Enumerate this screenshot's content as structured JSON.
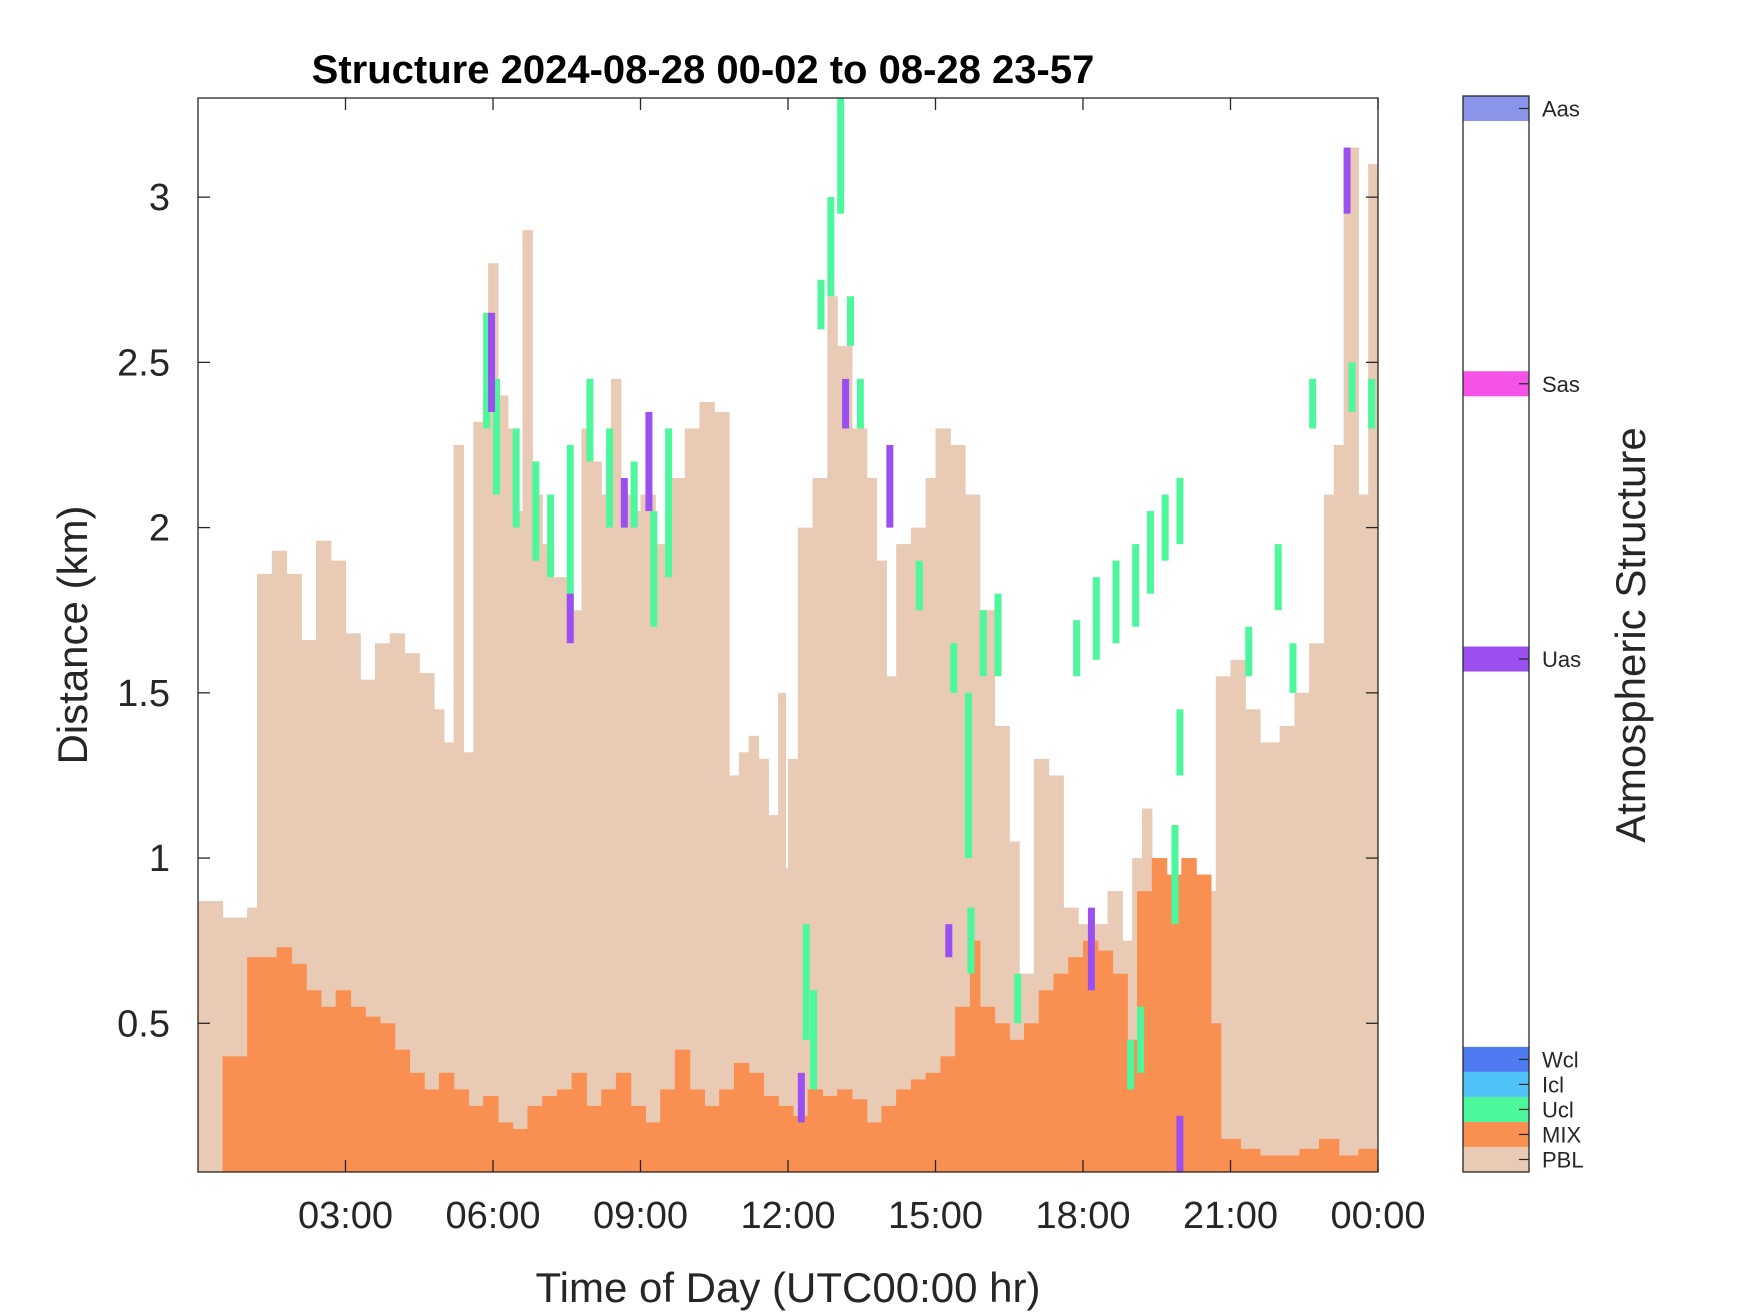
{
  "chart_data": {
    "type": "area",
    "title": "Structure 2024-08-28 00-02 to 08-28 23-57",
    "xlabel": "Time of Day (UTC00:00 hr)",
    "ylabel": "Distance (km)",
    "x_range_hours": [
      0,
      24
    ],
    "xlim": [
      "00:00",
      "24:00"
    ],
    "ylim": [
      0.05,
      3.3
    ],
    "x_tick_labels": [
      "03:00",
      "06:00",
      "09:00",
      "12:00",
      "15:00",
      "18:00",
      "21:00",
      "00:00"
    ],
    "y_tick_labels": [
      "0.5",
      "1",
      "1.5",
      "2",
      "2.5",
      "3"
    ],
    "grid": false,
    "colorbar": {
      "label": "Atmospheric Structure",
      "classes": [
        {
          "name": "PBL",
          "color": "#E9CAB5"
        },
        {
          "name": "MIX",
          "color": "#F98F50"
        },
        {
          "name": "Ucl",
          "color": "#4DF79C"
        },
        {
          "name": "Icl",
          "color": "#4FC3F7"
        },
        {
          "name": "Wcl",
          "color": "#4F7BF2"
        },
        {
          "name": "Uas",
          "color": "#9B4FF0"
        },
        {
          "name": "Sas",
          "color": "#F553E8"
        },
        {
          "name": "Aas",
          "color": "#8A95EA"
        }
      ]
    },
    "series": [
      {
        "name": "PBL",
        "type": "area",
        "points": [
          [
            0.0,
            0.87
          ],
          [
            0.5,
            0.82
          ],
          [
            1.0,
            0.85
          ],
          [
            1.2,
            1.86
          ],
          [
            1.5,
            1.93
          ],
          [
            1.8,
            1.86
          ],
          [
            2.1,
            1.66
          ],
          [
            2.4,
            1.96
          ],
          [
            2.7,
            1.9
          ],
          [
            3.0,
            1.68
          ],
          [
            3.3,
            1.54
          ],
          [
            3.6,
            1.65
          ],
          [
            3.9,
            1.68
          ],
          [
            4.2,
            1.62
          ],
          [
            4.5,
            1.56
          ],
          [
            4.8,
            1.45
          ],
          [
            5.0,
            1.35
          ],
          [
            5.2,
            2.25
          ],
          [
            5.4,
            1.32
          ],
          [
            5.6,
            2.32
          ],
          [
            5.8,
            2.4
          ],
          [
            5.9,
            2.8
          ],
          [
            6.1,
            2.4
          ],
          [
            6.3,
            2.3
          ],
          [
            6.4,
            2.05
          ],
          [
            6.6,
            2.9
          ],
          [
            6.8,
            2.1
          ],
          [
            7.0,
            1.95
          ],
          [
            7.2,
            1.85
          ],
          [
            7.5,
            1.75
          ],
          [
            7.8,
            2.3
          ],
          [
            8.0,
            2.2
          ],
          [
            8.2,
            2.1
          ],
          [
            8.4,
            2.45
          ],
          [
            8.6,
            2.1
          ],
          [
            8.8,
            2.05
          ],
          [
            9.0,
            2.1
          ],
          [
            9.3,
            1.95
          ],
          [
            9.6,
            2.15
          ],
          [
            9.9,
            2.3
          ],
          [
            10.2,
            2.38
          ],
          [
            10.5,
            2.35
          ],
          [
            10.8,
            1.25
          ],
          [
            11.0,
            1.32
          ],
          [
            11.2,
            1.37
          ],
          [
            11.4,
            1.3
          ],
          [
            11.6,
            1.13
          ],
          [
            11.8,
            1.5
          ],
          [
            11.95,
            0.97
          ],
          [
            12.0,
            1.3
          ],
          [
            12.2,
            2.0
          ],
          [
            12.5,
            2.15
          ],
          [
            12.8,
            2.7
          ],
          [
            13.0,
            2.55
          ],
          [
            13.3,
            2.3
          ],
          [
            13.6,
            2.15
          ],
          [
            13.8,
            1.9
          ],
          [
            14.0,
            1.55
          ],
          [
            14.2,
            1.95
          ],
          [
            14.5,
            2.0
          ],
          [
            14.8,
            2.15
          ],
          [
            15.0,
            2.3
          ],
          [
            15.3,
            2.25
          ],
          [
            15.6,
            2.1
          ],
          [
            15.9,
            1.75
          ],
          [
            16.2,
            1.4
          ],
          [
            16.5,
            1.05
          ],
          [
            16.7,
            0.65
          ],
          [
            17.0,
            1.3
          ],
          [
            17.3,
            1.25
          ],
          [
            17.6,
            0.85
          ],
          [
            17.9,
            0.8
          ],
          [
            18.2,
            0.8
          ],
          [
            18.5,
            0.9
          ],
          [
            18.8,
            0.75
          ],
          [
            19.0,
            1.0
          ],
          [
            19.2,
            1.15
          ],
          [
            19.4,
            1.0
          ],
          [
            19.7,
            0.95
          ],
          [
            20.0,
            1.0
          ],
          [
            20.3,
            0.95
          ],
          [
            20.6,
            0.9
          ],
          [
            20.7,
            1.55
          ],
          [
            21.0,
            1.6
          ],
          [
            21.3,
            1.45
          ],
          [
            21.6,
            1.35
          ],
          [
            22.0,
            1.4
          ],
          [
            22.3,
            1.5
          ],
          [
            22.6,
            1.65
          ],
          [
            22.9,
            2.1
          ],
          [
            23.1,
            2.25
          ],
          [
            23.3,
            3.15
          ],
          [
            23.6,
            2.1
          ],
          [
            23.8,
            3.1
          ],
          [
            24.0,
            3.1
          ]
        ]
      },
      {
        "name": "MIX",
        "type": "area",
        "points": [
          [
            0.0,
            0.05
          ],
          [
            0.5,
            0.4
          ],
          [
            1.0,
            0.7
          ],
          [
            1.3,
            0.7
          ],
          [
            1.6,
            0.73
          ],
          [
            1.9,
            0.68
          ],
          [
            2.2,
            0.6
          ],
          [
            2.5,
            0.55
          ],
          [
            2.8,
            0.6
          ],
          [
            3.1,
            0.55
          ],
          [
            3.4,
            0.52
          ],
          [
            3.7,
            0.5
          ],
          [
            4.0,
            0.42
          ],
          [
            4.3,
            0.35
          ],
          [
            4.6,
            0.3
          ],
          [
            4.9,
            0.35
          ],
          [
            5.2,
            0.3
          ],
          [
            5.5,
            0.25
          ],
          [
            5.8,
            0.28
          ],
          [
            6.1,
            0.2
          ],
          [
            6.4,
            0.18
          ],
          [
            6.7,
            0.25
          ],
          [
            7.0,
            0.28
          ],
          [
            7.3,
            0.3
          ],
          [
            7.6,
            0.35
          ],
          [
            7.9,
            0.25
          ],
          [
            8.2,
            0.3
          ],
          [
            8.5,
            0.35
          ],
          [
            8.8,
            0.25
          ],
          [
            9.1,
            0.2
          ],
          [
            9.4,
            0.3
          ],
          [
            9.7,
            0.42
          ],
          [
            10.0,
            0.3
          ],
          [
            10.3,
            0.25
          ],
          [
            10.6,
            0.3
          ],
          [
            10.9,
            0.38
          ],
          [
            11.2,
            0.35
          ],
          [
            11.5,
            0.28
          ],
          [
            11.8,
            0.25
          ],
          [
            12.1,
            0.22
          ],
          [
            12.4,
            0.3
          ],
          [
            12.7,
            0.28
          ],
          [
            13.0,
            0.3
          ],
          [
            13.3,
            0.27
          ],
          [
            13.6,
            0.2
          ],
          [
            13.9,
            0.25
          ],
          [
            14.2,
            0.3
          ],
          [
            14.5,
            0.33
          ],
          [
            14.8,
            0.35
          ],
          [
            15.1,
            0.4
          ],
          [
            15.4,
            0.55
          ],
          [
            15.7,
            0.75
          ],
          [
            15.9,
            0.55
          ],
          [
            16.2,
            0.5
          ],
          [
            16.5,
            0.45
          ],
          [
            16.8,
            0.5
          ],
          [
            17.1,
            0.6
          ],
          [
            17.4,
            0.65
          ],
          [
            17.7,
            0.7
          ],
          [
            18.0,
            0.75
          ],
          [
            18.3,
            0.72
          ],
          [
            18.6,
            0.65
          ],
          [
            18.9,
            0.45
          ],
          [
            19.1,
            0.9
          ],
          [
            19.4,
            1.0
          ],
          [
            19.7,
            0.95
          ],
          [
            20.0,
            1.0
          ],
          [
            20.3,
            0.95
          ],
          [
            20.6,
            0.5
          ],
          [
            20.8,
            0.15
          ],
          [
            21.2,
            0.12
          ],
          [
            21.6,
            0.1
          ],
          [
            22.0,
            0.1
          ],
          [
            22.4,
            0.12
          ],
          [
            22.8,
            0.15
          ],
          [
            23.2,
            0.1
          ],
          [
            23.6,
            0.12
          ],
          [
            24.0,
            0.12
          ]
        ]
      },
      {
        "name": "Ucl",
        "type": "segments",
        "segments": [
          [
            5.8,
            2.3,
            2.65
          ],
          [
            6.0,
            2.1,
            2.45
          ],
          [
            6.4,
            2.0,
            2.3
          ],
          [
            6.8,
            1.9,
            2.2
          ],
          [
            7.1,
            1.85,
            2.1
          ],
          [
            7.5,
            1.75,
            2.25
          ],
          [
            7.9,
            2.2,
            2.45
          ],
          [
            8.3,
            2.0,
            2.3
          ],
          [
            8.8,
            2.0,
            2.2
          ],
          [
            9.2,
            1.7,
            2.05
          ],
          [
            9.5,
            1.85,
            2.3
          ],
          [
            12.3,
            0.45,
            0.8
          ],
          [
            12.45,
            0.3,
            0.6
          ],
          [
            12.6,
            2.6,
            2.75
          ],
          [
            12.8,
            2.7,
            3.0
          ],
          [
            13.0,
            2.95,
            3.3
          ],
          [
            13.2,
            2.55,
            2.7
          ],
          [
            13.4,
            2.3,
            2.45
          ],
          [
            14.6,
            1.75,
            1.9
          ],
          [
            15.3,
            1.5,
            1.65
          ],
          [
            15.6,
            1.0,
            1.5
          ],
          [
            15.9,
            1.55,
            1.75
          ],
          [
            16.2,
            1.55,
            1.8
          ],
          [
            15.65,
            0.65,
            0.85
          ],
          [
            17.8,
            1.55,
            1.72
          ],
          [
            18.2,
            1.6,
            1.85
          ],
          [
            18.6,
            1.65,
            1.9
          ],
          [
            19.0,
            1.7,
            1.95
          ],
          [
            19.3,
            1.8,
            2.05
          ],
          [
            19.6,
            1.9,
            2.1
          ],
          [
            19.9,
            1.95,
            2.15
          ],
          [
            19.9,
            1.25,
            1.45
          ],
          [
            19.8,
            0.8,
            1.1
          ],
          [
            19.1,
            0.35,
            0.55
          ],
          [
            18.9,
            0.3,
            0.45
          ],
          [
            21.3,
            1.55,
            1.7
          ],
          [
            21.9,
            1.75,
            1.95
          ],
          [
            22.2,
            1.5,
            1.65
          ],
          [
            22.6,
            2.3,
            2.45
          ],
          [
            23.4,
            2.35,
            2.5
          ],
          [
            23.8,
            2.3,
            2.45
          ],
          [
            16.6,
            0.5,
            0.65
          ]
        ]
      },
      {
        "name": "Uas",
        "type": "segments",
        "segments": [
          [
            5.9,
            2.35,
            2.65
          ],
          [
            7.5,
            1.65,
            1.8
          ],
          [
            8.6,
            2.0,
            2.15
          ],
          [
            9.1,
            2.05,
            2.35
          ],
          [
            12.2,
            0.2,
            0.35
          ],
          [
            13.1,
            2.3,
            2.45
          ],
          [
            14.0,
            2.0,
            2.25
          ],
          [
            15.2,
            0.7,
            0.8
          ],
          [
            18.1,
            0.6,
            0.85
          ],
          [
            19.9,
            0.05,
            0.22
          ],
          [
            23.3,
            2.95,
            3.15
          ]
        ]
      }
    ]
  }
}
